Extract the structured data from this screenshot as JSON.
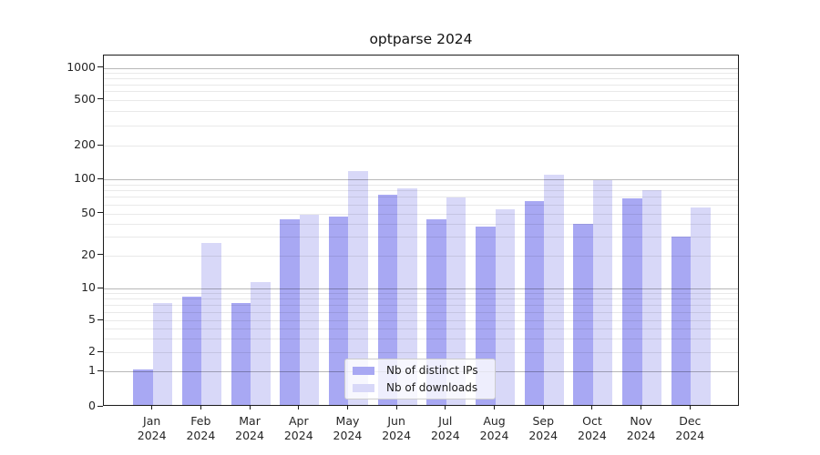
{
  "chart_data": {
    "type": "bar",
    "title": "optparse 2024",
    "categories": [
      "Jan",
      "Feb",
      "Mar",
      "Apr",
      "May",
      "Jun",
      "Jul",
      "Aug",
      "Sep",
      "Oct",
      "Nov",
      "Dec"
    ],
    "x_sublabel": "2024",
    "series": [
      {
        "name": "Nb of distinct IPs",
        "color": "#a8a8f3",
        "values": [
          1,
          8,
          7,
          42,
          45,
          70,
          42,
          36,
          62,
          38,
          65,
          29
        ]
      },
      {
        "name": "Nb of downloads",
        "color": "#d8d8f8",
        "values": [
          7,
          25,
          11,
          47,
          115,
          80,
          66,
          52,
          106,
          94,
          77,
          54
        ]
      }
    ],
    "yscale": "symlog",
    "y_ticks": [
      0,
      1,
      2,
      5,
      10,
      20,
      50,
      100,
      200,
      500,
      1000
    ],
    "ylim": [
      0,
      1300
    ],
    "xlabel": "",
    "ylabel": "",
    "grid": "on",
    "grid_over_bars": true,
    "legend_position": "lower center",
    "colors": {
      "major_grid": "#b9b9b9",
      "minor_grid": "#eaeaea",
      "axis": "#1b1b1b",
      "text": "#262626",
      "background": "#ffffff"
    }
  }
}
